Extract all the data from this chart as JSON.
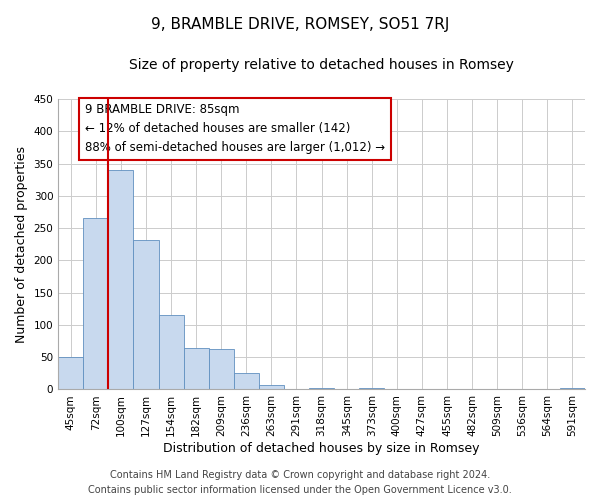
{
  "title": "9, BRAMBLE DRIVE, ROMSEY, SO51 7RJ",
  "subtitle": "Size of property relative to detached houses in Romsey",
  "xlabel": "Distribution of detached houses by size in Romsey",
  "ylabel": "Number of detached properties",
  "bar_labels": [
    "45sqm",
    "72sqm",
    "100sqm",
    "127sqm",
    "154sqm",
    "182sqm",
    "209sqm",
    "236sqm",
    "263sqm",
    "291sqm",
    "318sqm",
    "345sqm",
    "373sqm",
    "400sqm",
    "427sqm",
    "455sqm",
    "482sqm",
    "509sqm",
    "536sqm",
    "564sqm",
    "591sqm"
  ],
  "bar_values": [
    50,
    265,
    340,
    232,
    116,
    65,
    62,
    25,
    7,
    0,
    2,
    0,
    2,
    0,
    0,
    0,
    0,
    0,
    0,
    0,
    2
  ],
  "bar_color": "#c8d9ee",
  "bar_edge_color": "#6090c0",
  "vline_x": 1.48,
  "vline_color": "#cc0000",
  "ylim": [
    0,
    450
  ],
  "yticks": [
    0,
    50,
    100,
    150,
    200,
    250,
    300,
    350,
    400,
    450
  ],
  "annotation_box_text": "9 BRAMBLE DRIVE: 85sqm\n← 12% of detached houses are smaller (142)\n88% of semi-detached houses are larger (1,012) →",
  "annotation_box_color": "#cc0000",
  "footer_line1": "Contains HM Land Registry data © Crown copyright and database right 2024.",
  "footer_line2": "Contains public sector information licensed under the Open Government Licence v3.0.",
  "bg_color": "#ffffff",
  "grid_color": "#cccccc",
  "title_fontsize": 11,
  "subtitle_fontsize": 10,
  "axis_label_fontsize": 9,
  "tick_fontsize": 7.5,
  "annotation_fontsize": 8.5,
  "footer_fontsize": 7
}
